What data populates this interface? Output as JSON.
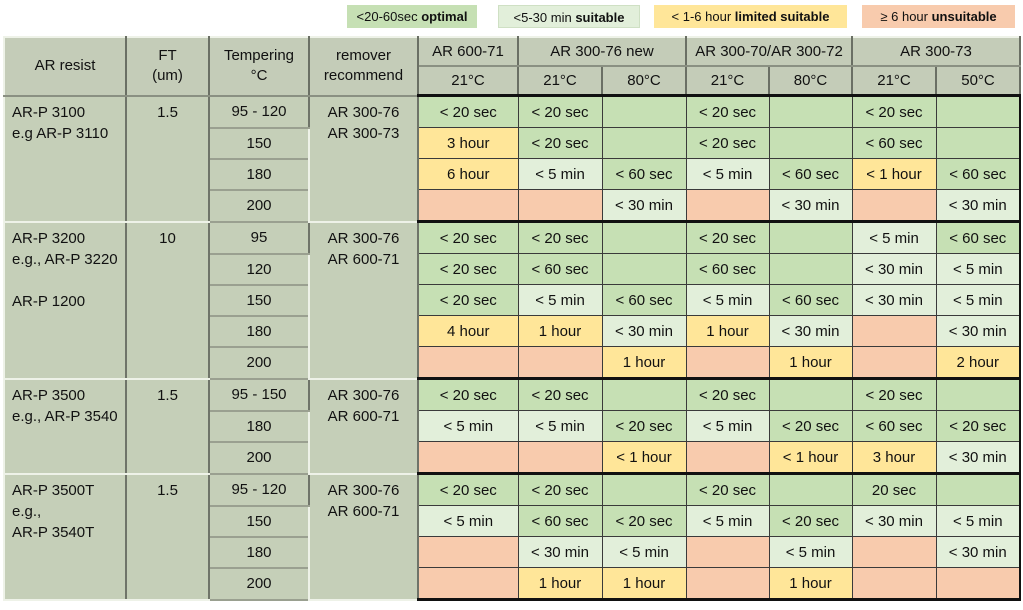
{
  "legend": [
    {
      "key": "o",
      "prefix": "<20-60sec ",
      "label": "optimal",
      "color": "#c6e0b4"
    },
    {
      "key": "s",
      "prefix": "<5-30 min ",
      "label": "suitable",
      "color": "#e2efda"
    },
    {
      "key": "l",
      "prefix": "< 1-6 hour ",
      "label": "limited suitable",
      "color": "#ffe699"
    },
    {
      "key": "u",
      "prefix": "≥ 6 hour ",
      "label": "unsuitable",
      "color": "#f8cbad"
    }
  ],
  "header": {
    "resist": "AR resist",
    "ft": [
      "FT",
      "(um)"
    ],
    "tempering": [
      "Tempering",
      "°C"
    ],
    "remover": [
      "remover",
      "recommend"
    ],
    "removers": [
      {
        "name": "AR 600-71",
        "temps": [
          "21°C"
        ]
      },
      {
        "name": "AR 300-76 new",
        "temps": [
          "21°C",
          "80°C"
        ]
      },
      {
        "name": "AR 300-70/AR 300-72",
        "temps": [
          "21°C",
          "80°C"
        ]
      },
      {
        "name": "AR 300-73",
        "temps": [
          "21°C",
          "50°C"
        ]
      }
    ]
  },
  "groups": [
    {
      "resist": [
        "AR-P 3100",
        "e.g AR-P 3110"
      ],
      "ft": "1.5",
      "remover": [
        "AR 300-76",
        "AR 300-73"
      ],
      "rows": [
        {
          "temp": "95 - 120",
          "cells": [
            [
              "< 20 sec",
              "o"
            ],
            [
              "< 20 sec",
              "o"
            ],
            [
              "",
              "o"
            ],
            [
              "< 20 sec",
              "o"
            ],
            [
              "",
              "o"
            ],
            [
              "< 20 sec",
              "o"
            ],
            [
              "",
              "o"
            ]
          ]
        },
        {
          "temp": "150",
          "cells": [
            [
              "3 hour",
              "l"
            ],
            [
              "< 20 sec",
              "o"
            ],
            [
              "",
              "o"
            ],
            [
              "< 20 sec",
              "o"
            ],
            [
              "",
              "o"
            ],
            [
              "< 60 sec",
              "o"
            ],
            [
              "",
              "o"
            ]
          ]
        },
        {
          "temp": "180",
          "cells": [
            [
              "6 hour",
              "l"
            ],
            [
              "< 5 min",
              "s"
            ],
            [
              "< 60 sec",
              "o"
            ],
            [
              "< 5 min",
              "s"
            ],
            [
              "< 60 sec",
              "o"
            ],
            [
              "< 1 hour",
              "l"
            ],
            [
              "< 60 sec",
              "o"
            ]
          ]
        },
        {
          "temp": "200",
          "cells": [
            [
              "",
              "u"
            ],
            [
              "",
              "u"
            ],
            [
              "< 30 min",
              "s"
            ],
            [
              "",
              "u"
            ],
            [
              "< 30 min",
              "s"
            ],
            [
              "",
              "u"
            ],
            [
              "< 30 min",
              "s"
            ]
          ]
        }
      ]
    },
    {
      "resist": [
        "AR-P 3200",
        "e.g., AR-P 3220",
        "",
        "AR-P 1200"
      ],
      "ft": "10",
      "remover": [
        "AR 300-76",
        "AR 600-71"
      ],
      "rows": [
        {
          "temp": "95",
          "cells": [
            [
              "< 20 sec",
              "o"
            ],
            [
              "< 20 sec",
              "o"
            ],
            [
              "",
              "o"
            ],
            [
              "< 20 sec",
              "o"
            ],
            [
              "",
              "o"
            ],
            [
              "< 5 min",
              "s"
            ],
            [
              "< 60 sec",
              "o"
            ]
          ]
        },
        {
          "temp": "120",
          "cells": [
            [
              "< 20 sec",
              "o"
            ],
            [
              "< 60 sec",
              "o"
            ],
            [
              "",
              "o"
            ],
            [
              "< 60 sec",
              "o"
            ],
            [
              "",
              "o"
            ],
            [
              "< 30 min",
              "s"
            ],
            [
              "< 5 min",
              "s"
            ]
          ]
        },
        {
          "temp": "150",
          "cells": [
            [
              "< 20 sec",
              "o"
            ],
            [
              "< 5 min",
              "s"
            ],
            [
              "< 60 sec",
              "o"
            ],
            [
              "< 5 min",
              "s"
            ],
            [
              "< 60 sec",
              "o"
            ],
            [
              "< 30 min",
              "s"
            ],
            [
              "< 5 min",
              "s"
            ]
          ]
        },
        {
          "temp": "180",
          "cells": [
            [
              "4 hour",
              "l"
            ],
            [
              "1 hour",
              "l"
            ],
            [
              "< 30 min",
              "s"
            ],
            [
              "1 hour",
              "l"
            ],
            [
              "< 30 min",
              "s"
            ],
            [
              "",
              "u"
            ],
            [
              "< 30 min",
              "s"
            ]
          ]
        },
        {
          "temp": "200",
          "cells": [
            [
              "",
              "u"
            ],
            [
              "",
              "u"
            ],
            [
              "1 hour",
              "l"
            ],
            [
              "",
              "u"
            ],
            [
              "1 hour",
              "l"
            ],
            [
              "",
              "u"
            ],
            [
              "2 hour",
              "l"
            ]
          ]
        }
      ]
    },
    {
      "resist": [
        "AR-P 3500",
        "e.g., AR-P 3540"
      ],
      "ft": "1.5",
      "remover": [
        "AR 300-76",
        "AR 600-71"
      ],
      "rows": [
        {
          "temp": "95 - 150",
          "cells": [
            [
              "< 20 sec",
              "o"
            ],
            [
              "< 20 sec",
              "o"
            ],
            [
              "",
              "o"
            ],
            [
              "< 20 sec",
              "o"
            ],
            [
              "",
              "o"
            ],
            [
              "< 20 sec",
              "o"
            ],
            [
              "",
              "o"
            ]
          ]
        },
        {
          "temp": "180",
          "cells": [
            [
              "< 5 min",
              "s"
            ],
            [
              "< 5 min",
              "s"
            ],
            [
              "< 20 sec",
              "o"
            ],
            [
              "< 5 min",
              "s"
            ],
            [
              "< 20 sec",
              "o"
            ],
            [
              "< 60 sec",
              "o"
            ],
            [
              "< 20 sec",
              "o"
            ]
          ]
        },
        {
          "temp": "200",
          "cells": [
            [
              "",
              "u"
            ],
            [
              "",
              "u"
            ],
            [
              "< 1 hour",
              "l"
            ],
            [
              "",
              "u"
            ],
            [
              "< 1 hour",
              "l"
            ],
            [
              "3 hour",
              "l"
            ],
            [
              "< 30 min",
              "s"
            ]
          ]
        }
      ]
    },
    {
      "resist": [
        "AR-P 3500T",
        "e.g.,",
        "AR-P 3540T"
      ],
      "ft": "1.5",
      "remover": [
        "AR 300-76",
        "AR 600-71"
      ],
      "rows": [
        {
          "temp": "95 - 120",
          "cells": [
            [
              "< 20 sec",
              "o"
            ],
            [
              "< 20 sec",
              "o"
            ],
            [
              "",
              "o"
            ],
            [
              "< 20 sec",
              "o"
            ],
            [
              "",
              "o"
            ],
            [
              "20 sec",
              "o"
            ],
            [
              "",
              "o"
            ]
          ]
        },
        {
          "temp": "150",
          "cells": [
            [
              "< 5 min",
              "s"
            ],
            [
              "< 60 sec",
              "o"
            ],
            [
              "< 20 sec",
              "o"
            ],
            [
              "< 5 min",
              "s"
            ],
            [
              "< 20 sec",
              "o"
            ],
            [
              "< 30 min",
              "s"
            ],
            [
              "< 5 min",
              "s"
            ]
          ]
        },
        {
          "temp": "180",
          "cells": [
            [
              "",
              "u"
            ],
            [
              "< 30 min",
              "s"
            ],
            [
              "< 5 min",
              "s"
            ],
            [
              "",
              "u"
            ],
            [
              "< 5 min",
              "s"
            ],
            [
              "",
              "u"
            ],
            [
              "< 30 min",
              "s"
            ]
          ]
        },
        {
          "temp": "200",
          "cells": [
            [
              "",
              "u"
            ],
            [
              "1 hour",
              "l"
            ],
            [
              "1 hour",
              "l"
            ],
            [
              "",
              "u"
            ],
            [
              "1 hour",
              "l"
            ],
            [
              "",
              "u"
            ],
            [
              "",
              "u"
            ]
          ]
        }
      ]
    }
  ]
}
